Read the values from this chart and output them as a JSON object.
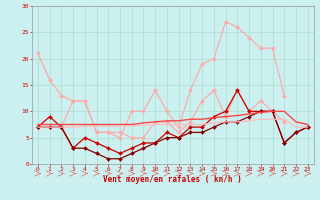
{
  "x": [
    0,
    1,
    2,
    3,
    4,
    5,
    6,
    7,
    8,
    9,
    10,
    11,
    12,
    13,
    14,
    15,
    16,
    17,
    18,
    19,
    20,
    21,
    22,
    23
  ],
  "line_pink_upper": [
    21,
    16,
    13,
    12,
    12,
    6,
    6,
    5,
    10,
    10,
    14,
    10,
    7,
    14,
    19,
    20,
    27,
    26,
    24,
    22,
    22,
    13,
    null,
    null
  ],
  "line_pink_lower": [
    7,
    7,
    7,
    12,
    12,
    6,
    6,
    6,
    5,
    5,
    8,
    8,
    6,
    8,
    12,
    14,
    9,
    14,
    10,
    12,
    10,
    8,
    null,
    null
  ],
  "line_dark_jagged": [
    7,
    9,
    7,
    3,
    5,
    4,
    3,
    2,
    3,
    4,
    4,
    6,
    5,
    7,
    7,
    9,
    10,
    14,
    10,
    10,
    10,
    4,
    6,
    7
  ],
  "line_dark_smooth": [
    7,
    7,
    7,
    3,
    3,
    2,
    1,
    1,
    2,
    3,
    4,
    5,
    5,
    6,
    6,
    7,
    8,
    8,
    9,
    10,
    10,
    4,
    6,
    7
  ],
  "line_red_trend1": [
    7.5,
    7.5,
    7.5,
    7.5,
    7.5,
    7.5,
    7.5,
    7.5,
    7.5,
    7.8,
    8.0,
    8.2,
    8.2,
    8.5,
    8.5,
    8.8,
    9.0,
    9.2,
    9.5,
    9.8,
    10.0,
    10.0,
    8.0,
    7.5
  ],
  "line_red_trend2": [
    7.0,
    7.0,
    7.0,
    7.0,
    7.2,
    7.2,
    7.2,
    7.2,
    7.3,
    7.3,
    7.5,
    7.5,
    7.5,
    7.5,
    7.5,
    7.8,
    8.0,
    8.0,
    8.2,
    8.5,
    8.5,
    8.5,
    7.0,
    7.0
  ],
  "color_pink_upper": "#ffaaaa",
  "color_pink_lower": "#ffaaaa",
  "color_dark_jagged": "#cc0000",
  "color_dark_smooth": "#880000",
  "color_trend1": "#ff4444",
  "color_trend2": "#ffbbbb",
  "background": "#ccf0f0",
  "grid_color": "#aaddcc",
  "xlabel": "Vent moyen/en rafales ( kn/h )",
  "xlim": [
    -0.5,
    23.5
  ],
  "ylim": [
    0,
    30
  ],
  "yticks": [
    0,
    5,
    10,
    15,
    20,
    25,
    30
  ],
  "xticks": [
    0,
    1,
    2,
    3,
    4,
    5,
    6,
    7,
    8,
    9,
    10,
    11,
    12,
    13,
    14,
    15,
    16,
    17,
    18,
    19,
    20,
    21,
    22,
    23
  ]
}
